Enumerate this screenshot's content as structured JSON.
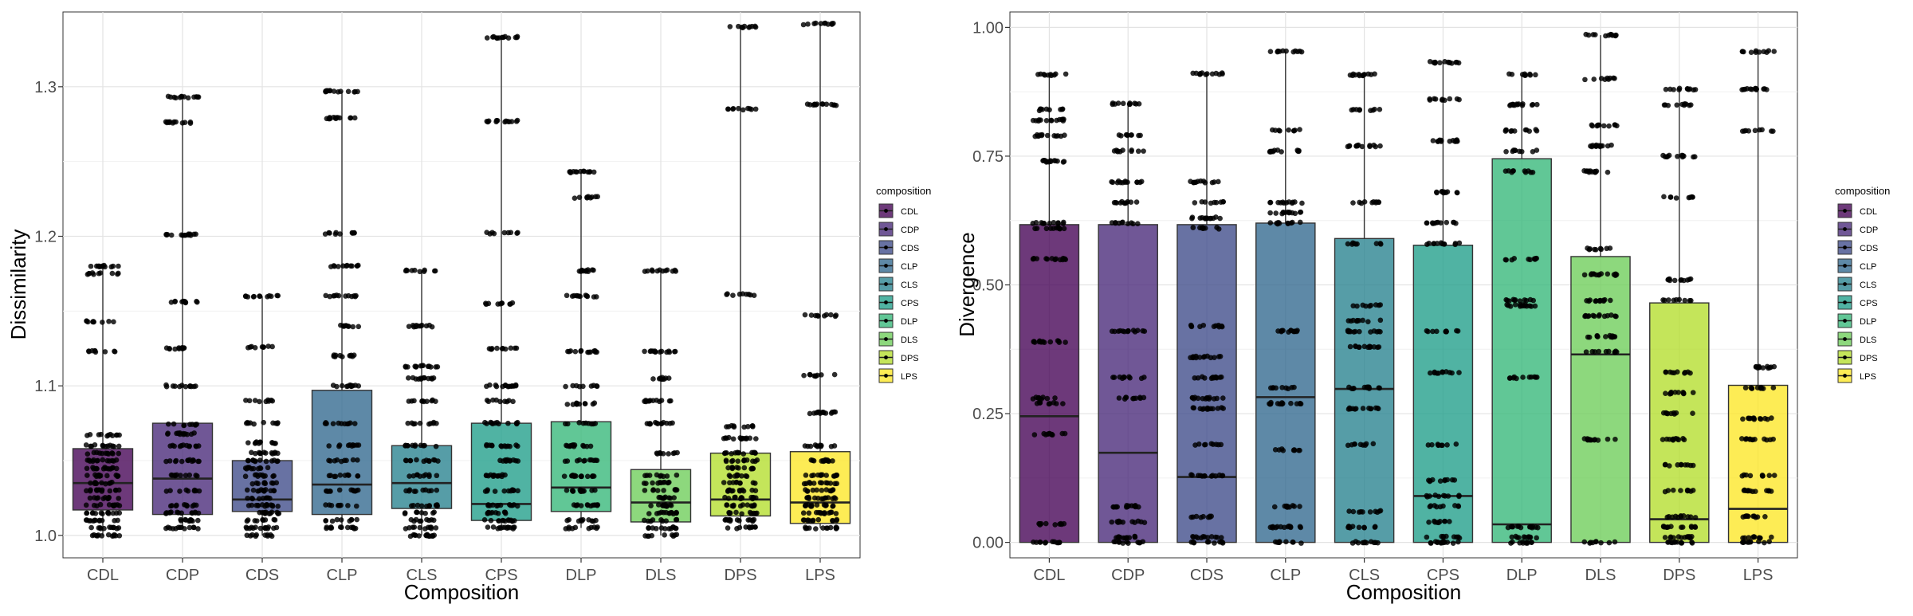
{
  "chart_data": [
    {
      "type": "box",
      "xlabel": "Composition",
      "ylabel": "Dissimilarity",
      "categories": [
        "CDL",
        "CDP",
        "CDS",
        "CLP",
        "CLS",
        "CPS",
        "DLP",
        "DLS",
        "DPS",
        "LPS"
      ],
      "ylim": [
        0.985,
        1.35
      ],
      "yticks": [
        1.0,
        1.1,
        1.2,
        1.3
      ],
      "ytick_labels": [
        "1.0",
        "1.1",
        "1.2",
        "1.3"
      ],
      "grid": true,
      "legend": {
        "title": "composition",
        "placement": "right",
        "entries": [
          "CDL",
          "CDP",
          "CDS",
          "CLP",
          "CLS",
          "CPS",
          "DLP",
          "DLS",
          "DPS",
          "LPS"
        ]
      },
      "boxes": [
        {
          "category": "CDL",
          "min": 1.0,
          "q1": 1.017,
          "median": 1.035,
          "q3": 1.058,
          "max": 1.18
        },
        {
          "category": "CDP",
          "min": 1.005,
          "q1": 1.014,
          "median": 1.038,
          "q3": 1.075,
          "max": 1.293
        },
        {
          "category": "CDS",
          "min": 1.0,
          "q1": 1.016,
          "median": 1.024,
          "q3": 1.05,
          "max": 1.16
        },
        {
          "category": "CLP",
          "min": 1.005,
          "q1": 1.014,
          "median": 1.034,
          "q3": 1.097,
          "max": 1.297
        },
        {
          "category": "CLS",
          "min": 1.0,
          "q1": 1.018,
          "median": 1.035,
          "q3": 1.06,
          "max": 1.177
        },
        {
          "category": "CPS",
          "min": 1.005,
          "q1": 1.01,
          "median": 1.021,
          "q3": 1.075,
          "max": 1.333
        },
        {
          "category": "DLP",
          "min": 1.005,
          "q1": 1.016,
          "median": 1.032,
          "q3": 1.076,
          "max": 1.243
        },
        {
          "category": "DLS",
          "min": 1.0,
          "q1": 1.009,
          "median": 1.022,
          "q3": 1.044,
          "max": 1.177
        },
        {
          "category": "DPS",
          "min": 1.005,
          "q1": 1.013,
          "median": 1.024,
          "q3": 1.055,
          "max": 1.34
        },
        {
          "category": "LPS",
          "min": 1.005,
          "q1": 1.008,
          "median": 1.022,
          "q3": 1.056,
          "max": 1.342
        }
      ],
      "jitter_levels": [
        [
          1.0,
          1.005,
          1.01,
          1.015,
          1.02,
          1.025,
          1.03,
          1.035,
          1.04,
          1.045,
          1.05,
          1.055,
          1.06,
          1.067,
          1.123,
          1.143,
          1.175,
          1.18
        ],
        [
          1.005,
          1.01,
          1.015,
          1.02,
          1.03,
          1.04,
          1.05,
          1.06,
          1.068,
          1.074,
          1.1,
          1.125,
          1.156,
          1.201,
          1.276,
          1.293
        ],
        [
          1.0,
          1.005,
          1.01,
          1.015,
          1.02,
          1.025,
          1.03,
          1.035,
          1.04,
          1.045,
          1.05,
          1.055,
          1.062,
          1.075,
          1.09,
          1.126,
          1.16
        ],
        [
          1.005,
          1.01,
          1.02,
          1.03,
          1.04,
          1.05,
          1.06,
          1.075,
          1.1,
          1.12,
          1.14,
          1.16,
          1.18,
          1.202,
          1.279,
          1.297
        ],
        [
          1.0,
          1.005,
          1.01,
          1.015,
          1.02,
          1.03,
          1.04,
          1.05,
          1.06,
          1.075,
          1.09,
          1.105,
          1.113,
          1.14,
          1.177
        ],
        [
          1.005,
          1.01,
          1.015,
          1.02,
          1.03,
          1.04,
          1.05,
          1.06,
          1.075,
          1.09,
          1.1,
          1.125,
          1.155,
          1.202,
          1.277,
          1.333
        ],
        [
          1.005,
          1.01,
          1.02,
          1.03,
          1.04,
          1.05,
          1.06,
          1.075,
          1.088,
          1.1,
          1.123,
          1.16,
          1.177,
          1.226,
          1.243
        ],
        [
          1.0,
          1.005,
          1.01,
          1.015,
          1.02,
          1.025,
          1.03,
          1.035,
          1.04,
          1.055,
          1.075,
          1.09,
          1.105,
          1.123,
          1.177
        ],
        [
          1.005,
          1.01,
          1.015,
          1.02,
          1.025,
          1.03,
          1.035,
          1.04,
          1.045,
          1.05,
          1.055,
          1.065,
          1.073,
          1.161,
          1.285,
          1.34
        ],
        [
          1.005,
          1.01,
          1.015,
          1.02,
          1.025,
          1.03,
          1.035,
          1.04,
          1.05,
          1.06,
          1.082,
          1.107,
          1.147,
          1.288,
          1.342
        ]
      ]
    },
    {
      "type": "box",
      "xlabel": "Composition",
      "ylabel": "Divergence",
      "categories": [
        "CDL",
        "CDP",
        "CDS",
        "CLP",
        "CLS",
        "CPS",
        "DLP",
        "DLS",
        "DPS",
        "LPS"
      ],
      "ylim": [
        -0.03,
        1.03
      ],
      "yticks": [
        0.0,
        0.25,
        0.5,
        0.75,
        1.0
      ],
      "ytick_labels": [
        "0.00",
        "0.25",
        "0.50",
        "0.75",
        "1.00"
      ],
      "grid": true,
      "legend": {
        "title": "composition",
        "placement": "right",
        "entries": [
          "CDL",
          "CDP",
          "CDS",
          "CLP",
          "CLS",
          "CPS",
          "DLP",
          "DLS",
          "DPS",
          "LPS"
        ]
      },
      "boxes": [
        {
          "category": "CDL",
          "min": 0.0,
          "q1": 0.0,
          "median": 0.245,
          "q3": 0.617,
          "max": 0.908
        },
        {
          "category": "CDP",
          "min": 0.0,
          "q1": 0.0,
          "median": 0.174,
          "q3": 0.617,
          "max": 0.852
        },
        {
          "category": "CDS",
          "min": 0.0,
          "q1": 0.0,
          "median": 0.127,
          "q3": 0.617,
          "max": 0.91
        },
        {
          "category": "CLP",
          "min": 0.0,
          "q1": 0.0,
          "median": 0.282,
          "q3": 0.62,
          "max": 0.953
        },
        {
          "category": "CLS",
          "min": 0.0,
          "q1": 0.0,
          "median": 0.298,
          "q3": 0.59,
          "max": 0.908
        },
        {
          "category": "CPS",
          "min": 0.0,
          "q1": 0.0,
          "median": 0.09,
          "q3": 0.577,
          "max": 0.932
        },
        {
          "category": "DLP",
          "min": 0.0,
          "q1": 0.0,
          "median": 0.035,
          "q3": 0.745,
          "max": 0.908
        },
        {
          "category": "DLS",
          "min": 0.0,
          "q1": 0.0,
          "median": 0.365,
          "q3": 0.555,
          "max": 0.985
        },
        {
          "category": "DPS",
          "min": 0.0,
          "q1": 0.0,
          "median": 0.045,
          "q3": 0.465,
          "max": 0.88
        },
        {
          "category": "LPS",
          "min": 0.0,
          "q1": 0.0,
          "median": 0.065,
          "q3": 0.305,
          "max": 0.953
        }
      ],
      "jitter_levels": [
        [
          0.0,
          0.035,
          0.21,
          0.27,
          0.28,
          0.39,
          0.55,
          0.61,
          0.62,
          0.74,
          0.79,
          0.82,
          0.84,
          0.908
        ],
        [
          0.0,
          0.01,
          0.04,
          0.07,
          0.28,
          0.32,
          0.41,
          0.62,
          0.66,
          0.7,
          0.76,
          0.79,
          0.852
        ],
        [
          0.0,
          0.01,
          0.05,
          0.13,
          0.19,
          0.26,
          0.28,
          0.32,
          0.36,
          0.42,
          0.61,
          0.63,
          0.66,
          0.7,
          0.91
        ],
        [
          0.0,
          0.03,
          0.07,
          0.18,
          0.27,
          0.3,
          0.41,
          0.62,
          0.64,
          0.66,
          0.76,
          0.8,
          0.953
        ],
        [
          0.0,
          0.03,
          0.06,
          0.19,
          0.26,
          0.3,
          0.38,
          0.41,
          0.43,
          0.46,
          0.58,
          0.66,
          0.77,
          0.84,
          0.908
        ],
        [
          0.0,
          0.01,
          0.04,
          0.07,
          0.09,
          0.12,
          0.19,
          0.33,
          0.41,
          0.58,
          0.62,
          0.68,
          0.78,
          0.86,
          0.932
        ],
        [
          0.0,
          0.01,
          0.03,
          0.32,
          0.46,
          0.47,
          0.55,
          0.72,
          0.76,
          0.8,
          0.85,
          0.908
        ],
        [
          0.0,
          0.2,
          0.37,
          0.4,
          0.44,
          0.47,
          0.52,
          0.57,
          0.72,
          0.77,
          0.81,
          0.9,
          0.985
        ],
        [
          0.0,
          0.01,
          0.03,
          0.05,
          0.1,
          0.15,
          0.2,
          0.25,
          0.29,
          0.33,
          0.47,
          0.51,
          0.67,
          0.75,
          0.85,
          0.88
        ],
        [
          0.0,
          0.01,
          0.05,
          0.1,
          0.13,
          0.2,
          0.24,
          0.3,
          0.34,
          0.8,
          0.88,
          0.953
        ]
      ]
    }
  ],
  "colors": {
    "CDL": "#440154",
    "CDP": "#482878",
    "CDS": "#3E4A89",
    "CLP": "#31688E",
    "CLS": "#26828E",
    "CPS": "#1F9E89",
    "DLP": "#35B779",
    "DLS": "#6DCD59",
    "DPS": "#B4DE2C",
    "LPS": "#FDE725"
  }
}
